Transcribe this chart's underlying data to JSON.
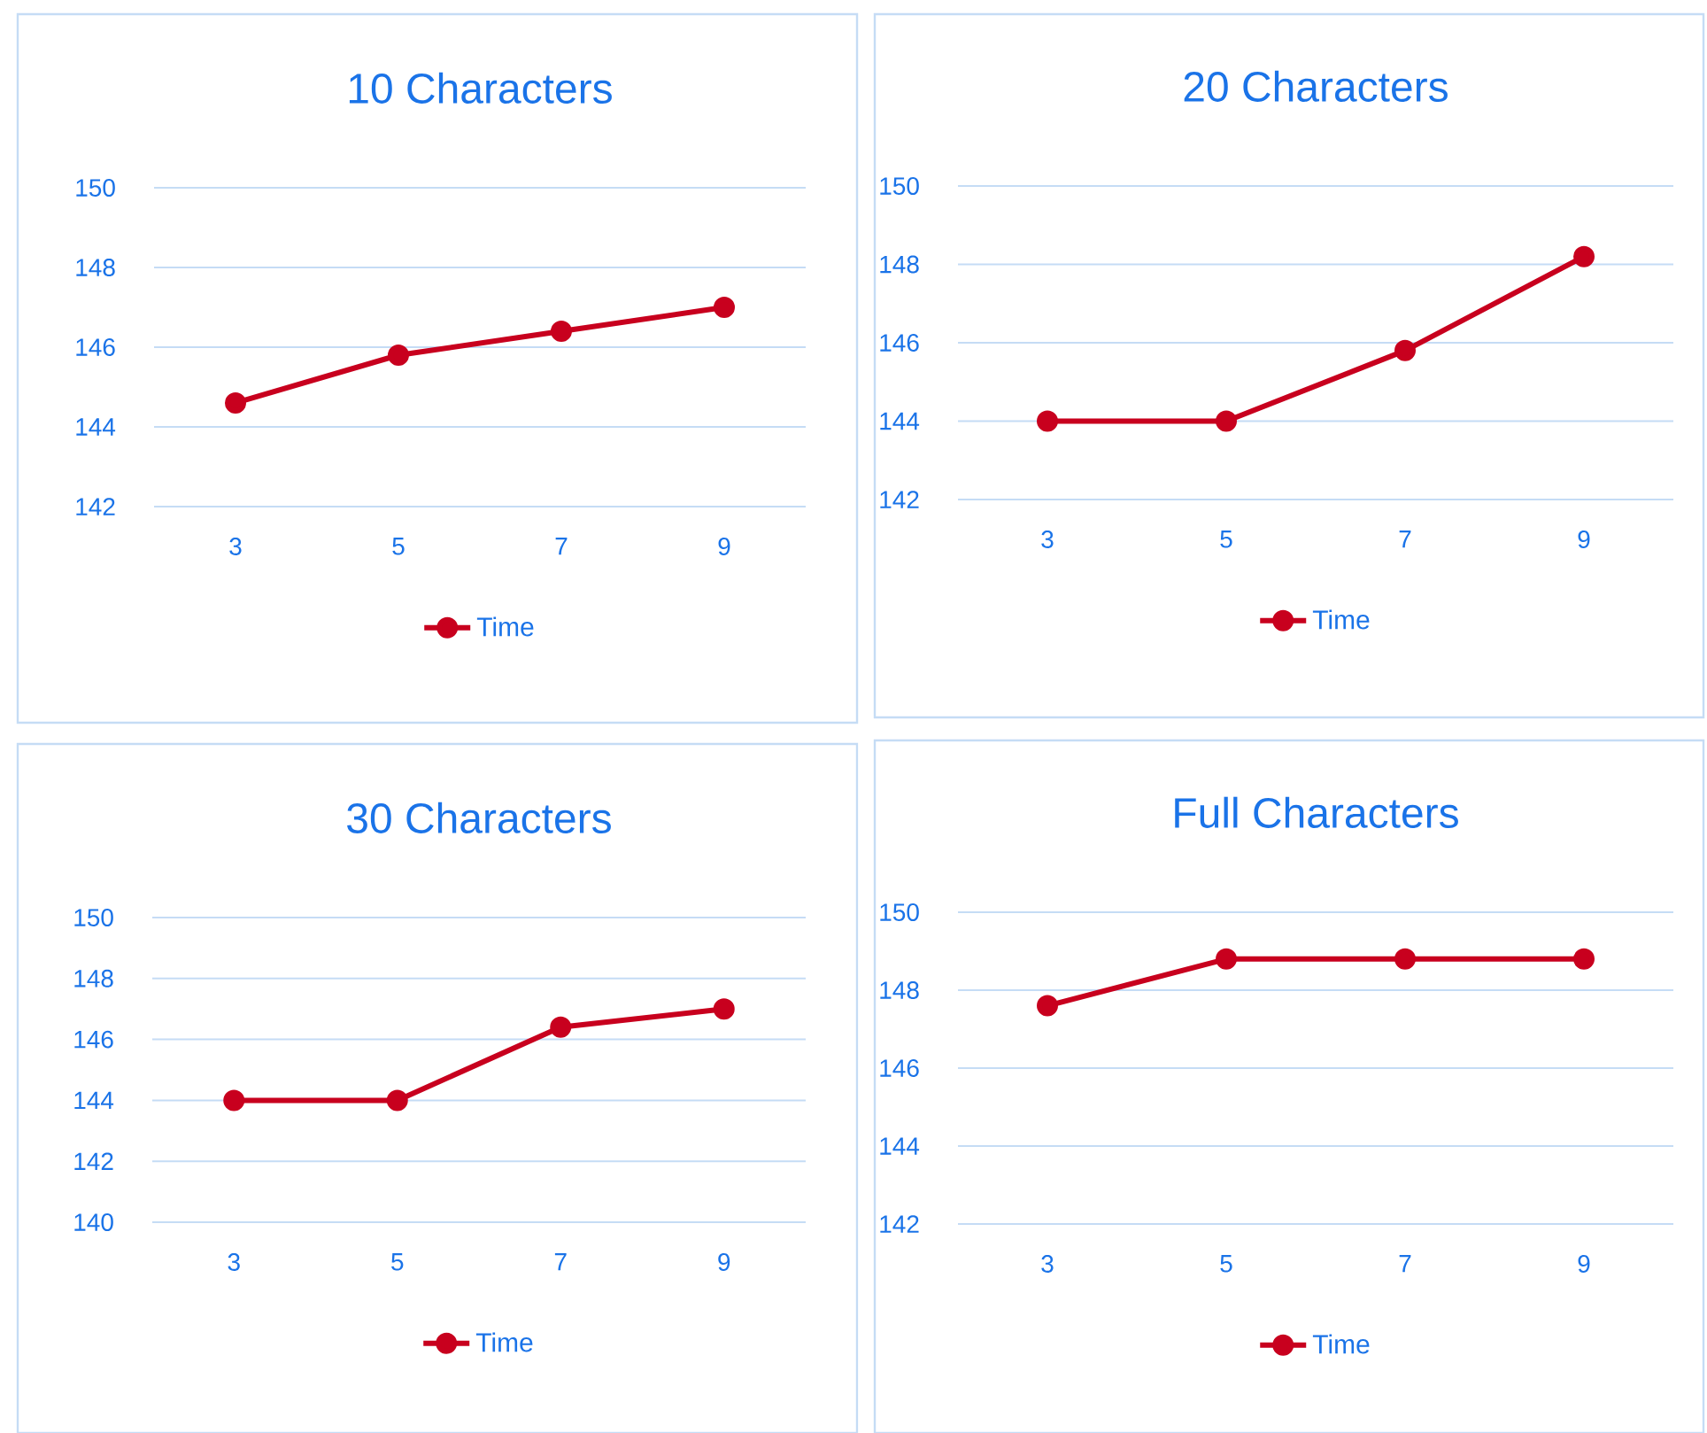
{
  "chart_data": [
    {
      "type": "line",
      "title": "10 Characters",
      "categories": [
        "3",
        "5",
        "7",
        "9"
      ],
      "series": [
        {
          "name": "Time",
          "color": "#c8001e",
          "values": [
            144.6,
            145.8,
            146.4,
            147.0
          ]
        }
      ],
      "ylim": [
        142,
        150
      ],
      "yticks": [
        142,
        144,
        146,
        148,
        150
      ],
      "grid": "y",
      "legend": "bottom",
      "marker": "circle"
    },
    {
      "type": "line",
      "title": "20 Characters",
      "categories": [
        "3",
        "5",
        "7",
        "9"
      ],
      "series": [
        {
          "name": "Time",
          "color": "#c8001e",
          "values": [
            144.0,
            144.0,
            145.8,
            148.2
          ]
        }
      ],
      "ylim": [
        142,
        150
      ],
      "yticks": [
        142,
        144,
        146,
        148,
        150
      ],
      "grid": "y",
      "legend": "bottom",
      "marker": "circle"
    },
    {
      "type": "line",
      "title": "30 Characters",
      "categories": [
        "3",
        "5",
        "7",
        "9"
      ],
      "series": [
        {
          "name": "Time",
          "color": "#c8001e",
          "values": [
            144.0,
            144.0,
            146.4,
            147.0
          ]
        }
      ],
      "ylim": [
        140,
        150
      ],
      "yticks": [
        140,
        142,
        144,
        146,
        148,
        150
      ],
      "grid": "y",
      "legend": "bottom",
      "marker": "circle"
    },
    {
      "type": "line",
      "title": "Full Characters",
      "categories": [
        "3",
        "5",
        "7",
        "9"
      ],
      "series": [
        {
          "name": "Time",
          "color": "#c8001e",
          "values": [
            147.6,
            148.8,
            148.8,
            148.8
          ]
        }
      ],
      "ylim": [
        142,
        150
      ],
      "yticks": [
        142,
        144,
        146,
        148,
        150
      ],
      "grid": "y",
      "legend": "bottom",
      "marker": "circle"
    }
  ]
}
